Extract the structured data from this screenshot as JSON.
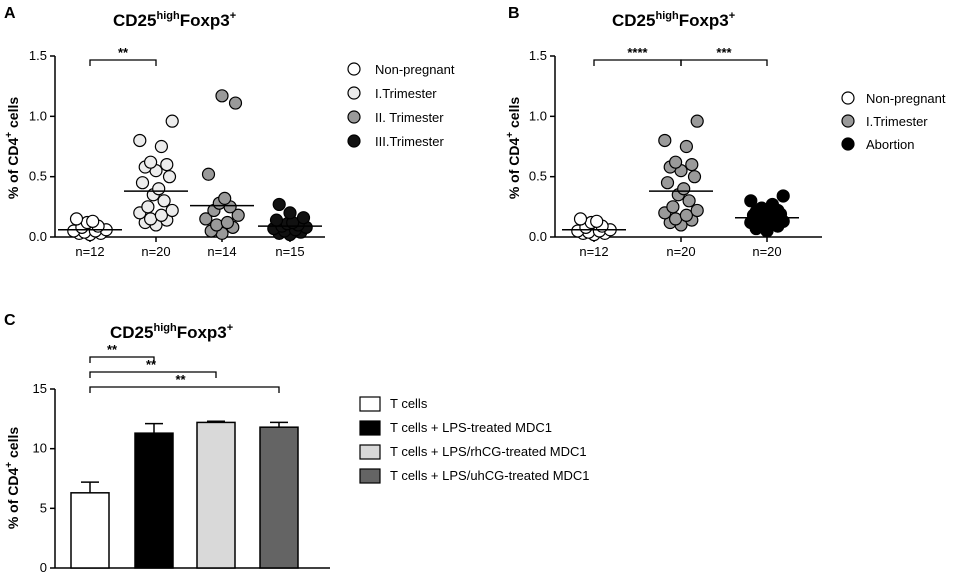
{
  "chart_data": [
    {
      "panel": "A",
      "type": "scatter",
      "title": {
        "base": "CD25",
        "sup1": "high",
        "mid": "Foxp3",
        "sup2": "+"
      },
      "ylabel": {
        "pre": "% of CD4",
        "sup": "+",
        "post": " cells"
      },
      "ylim": [
        0,
        1.5
      ],
      "yticks": [
        "0.0",
        "0.5",
        "1.0",
        "1.5"
      ],
      "categories": [
        "n=12",
        "n=20",
        "n=14",
        "n=15"
      ],
      "series": [
        {
          "name": "Non-pregnant",
          "color": "#ffffff",
          "mean": 0.06,
          "values": [
            0.02,
            0.03,
            0.03,
            0.04,
            0.05,
            0.05,
            0.06,
            0.08,
            0.09,
            0.12,
            0.13,
            0.15
          ]
        },
        {
          "name": "I.Trimester",
          "color": "#ececec",
          "mean": 0.38,
          "values": [
            0.1,
            0.12,
            0.14,
            0.15,
            0.18,
            0.2,
            0.22,
            0.25,
            0.3,
            0.35,
            0.4,
            0.45,
            0.5,
            0.55,
            0.58,
            0.6,
            0.62,
            0.75,
            0.8,
            0.96
          ]
        },
        {
          "name": "II. Trimester",
          "color": "#9a9a9a",
          "mean": 0.26,
          "values": [
            0.03,
            0.05,
            0.08,
            0.1,
            0.12,
            0.15,
            0.18,
            0.22,
            0.25,
            0.28,
            0.32,
            0.52,
            1.11,
            1.17
          ]
        },
        {
          "name": "III.Trimester",
          "color": "#111111",
          "mean": 0.09,
          "values": [
            0.02,
            0.03,
            0.04,
            0.05,
            0.06,
            0.07,
            0.08,
            0.09,
            0.1,
            0.11,
            0.12,
            0.14,
            0.16,
            0.2,
            0.27
          ]
        }
      ],
      "significance": [
        {
          "from": 0,
          "to": 1,
          "label": "**"
        }
      ]
    },
    {
      "panel": "B",
      "type": "scatter",
      "title": {
        "base": "CD25",
        "sup1": "high",
        "mid": "Foxp3",
        "sup2": "+"
      },
      "ylabel": {
        "pre": "% of CD4",
        "sup": "+",
        "post": " cells"
      },
      "ylim": [
        0,
        1.5
      ],
      "yticks": [
        "0.0",
        "0.5",
        "1.0",
        "1.5"
      ],
      "categories": [
        "n=12",
        "n=20",
        "n=20"
      ],
      "series": [
        {
          "name": "Non-pregnant",
          "color": "#ffffff",
          "mean": 0.06,
          "values": [
            0.02,
            0.03,
            0.03,
            0.04,
            0.05,
            0.05,
            0.06,
            0.08,
            0.09,
            0.12,
            0.13,
            0.15
          ]
        },
        {
          "name": "I.Trimester",
          "color": "#9a9a9a",
          "mean": 0.38,
          "values": [
            0.1,
            0.12,
            0.14,
            0.15,
            0.18,
            0.2,
            0.22,
            0.25,
            0.3,
            0.35,
            0.4,
            0.45,
            0.5,
            0.55,
            0.58,
            0.6,
            0.62,
            0.75,
            0.8,
            0.96
          ]
        },
        {
          "name": "Abortion",
          "color": "#000000",
          "mean": 0.16,
          "values": [
            0.05,
            0.07,
            0.09,
            0.1,
            0.11,
            0.12,
            0.13,
            0.14,
            0.15,
            0.16,
            0.17,
            0.18,
            0.19,
            0.2,
            0.21,
            0.22,
            0.24,
            0.27,
            0.3,
            0.34
          ]
        }
      ],
      "significance": [
        {
          "from": 0,
          "to": 1,
          "label": "****"
        },
        {
          "from": 1,
          "to": 2,
          "label": "***"
        }
      ]
    },
    {
      "panel": "C",
      "type": "bar",
      "title": {
        "base": "CD25",
        "sup1": "high",
        "mid": "Foxp3",
        "sup2": "+"
      },
      "ylabel": {
        "pre": "% of CD4",
        "sup": "+",
        "post": " cells"
      },
      "ylim": [
        0,
        15
      ],
      "yticks": [
        "0",
        "5",
        "10",
        "15"
      ],
      "series": [
        {
          "name": "T cells",
          "value": 6.3,
          "error": 0.9,
          "color": "#ffffff"
        },
        {
          "name": "T cells + LPS-treated MDC1",
          "value": 11.3,
          "error": 0.8,
          "color": "#000000"
        },
        {
          "name": "T cells + LPS/rhCG-treated MDC1",
          "value": 12.2,
          "error": 0.1,
          "color": "#d9d9d9"
        },
        {
          "name": "T cells + LPS/uhCG-treated MDC1",
          "value": 11.8,
          "error": 0.4,
          "color": "#646464"
        }
      ],
      "significance": [
        {
          "from": 0,
          "to": 1,
          "label": "**"
        },
        {
          "from": 0,
          "to": 2,
          "label": "**"
        },
        {
          "from": 0,
          "to": 3,
          "label": "**"
        }
      ]
    }
  ]
}
